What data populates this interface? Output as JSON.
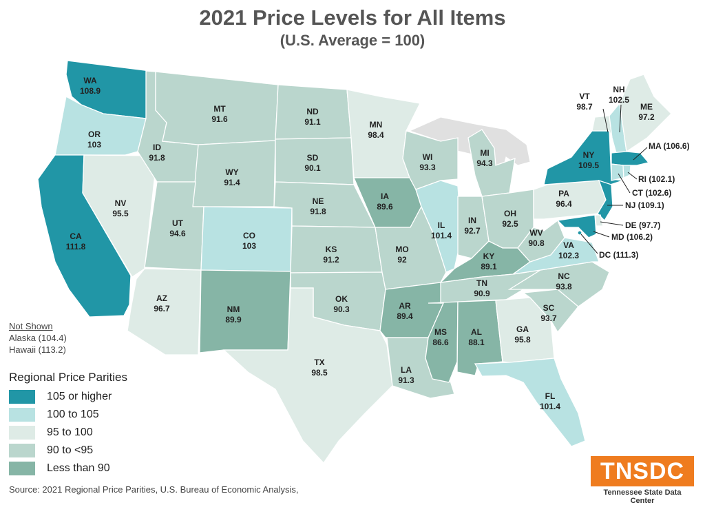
{
  "title": "2021 Price Levels for All Items",
  "subtitle": "(U.S. Average = 100)",
  "colors": {
    "tier1": "#2196a6",
    "tier2": "#b8e2e2",
    "tier3": "#deebe6",
    "tier4": "#bad6cd",
    "tier5": "#86b5a6",
    "other": "#e0e0e0",
    "logo": "#ef7c1f"
  },
  "states": {
    "WA": {
      "abbr": "WA",
      "value": "108.9"
    },
    "OR": {
      "abbr": "OR",
      "value": "103"
    },
    "CA": {
      "abbr": "CA",
      "value": "111.8"
    },
    "NV": {
      "abbr": "NV",
      "value": "95.5"
    },
    "ID": {
      "abbr": "ID",
      "value": "91.8"
    },
    "MT": {
      "abbr": "MT",
      "value": "91.6"
    },
    "WY": {
      "abbr": "WY",
      "value": "91.4"
    },
    "UT": {
      "abbr": "UT",
      "value": "94.6"
    },
    "AZ": {
      "abbr": "AZ",
      "value": "96.7"
    },
    "CO": {
      "abbr": "CO",
      "value": "103"
    },
    "NM": {
      "abbr": "NM",
      "value": "89.9"
    },
    "ND": {
      "abbr": "ND",
      "value": "91.1"
    },
    "SD": {
      "abbr": "SD",
      "value": "90.1"
    },
    "NE": {
      "abbr": "NE",
      "value": "91.8"
    },
    "KS": {
      "abbr": "KS",
      "value": "91.2"
    },
    "OK": {
      "abbr": "OK",
      "value": "90.3"
    },
    "TX": {
      "abbr": "TX",
      "value": "98.5"
    },
    "MN": {
      "abbr": "MN",
      "value": "98.4"
    },
    "IA": {
      "abbr": "IA",
      "value": "89.6"
    },
    "MO": {
      "abbr": "MO",
      "value": "92"
    },
    "AR": {
      "abbr": "AR",
      "value": "89.4"
    },
    "LA": {
      "abbr": "LA",
      "value": "91.3"
    },
    "WI": {
      "abbr": "WI",
      "value": "93.3"
    },
    "IL": {
      "abbr": "IL",
      "value": "101.4"
    },
    "MI": {
      "abbr": "MI",
      "value": "94.3"
    },
    "IN": {
      "abbr": "IN",
      "value": "92.7"
    },
    "OH": {
      "abbr": "OH",
      "value": "92.5"
    },
    "KY": {
      "abbr": "KY",
      "value": "89.1"
    },
    "TN": {
      "abbr": "TN",
      "value": "90.9"
    },
    "MS": {
      "abbr": "MS",
      "value": "86.6"
    },
    "AL": {
      "abbr": "AL",
      "value": "88.1"
    },
    "GA": {
      "abbr": "GA",
      "value": "95.8"
    },
    "FL": {
      "abbr": "FL",
      "value": "101.4"
    },
    "SC": {
      "abbr": "SC",
      "value": "93.7"
    },
    "NC": {
      "abbr": "NC",
      "value": "93.8"
    },
    "VA": {
      "abbr": "VA",
      "value": "102.3"
    },
    "WV": {
      "abbr": "WV",
      "value": "90.8"
    },
    "PA": {
      "abbr": "PA",
      "value": "96.4"
    },
    "NY": {
      "abbr": "NY",
      "value": "109.5"
    },
    "VT": {
      "abbr": "VT",
      "value": "98.7"
    },
    "NH": {
      "abbr": "NH",
      "value": "102.5"
    },
    "ME": {
      "abbr": "ME",
      "value": "97.2"
    }
  },
  "callouts": {
    "MA": "MA (106.6)",
    "RI": "RI (102.1)",
    "CT": "CT (102.6)",
    "NJ": "NJ (109.1)",
    "DE": "DE (97.7)",
    "MD": "MD (106.2)",
    "DC": "DC (111.3)"
  },
  "not_shown": {
    "header": "Not Shown",
    "alaska": "Alaska (104.4)",
    "hawaii": "Hawaii (113.2)"
  },
  "legend": {
    "title": "Regional Price Parities",
    "items": [
      {
        "label": "105 or higher",
        "color": "#2196a6"
      },
      {
        "label": "100 to 105",
        "color": "#b8e2e2"
      },
      {
        "label": "95 to 100",
        "color": "#deebe6"
      },
      {
        "label": "90 to <95",
        "color": "#bad6cd"
      },
      {
        "label": "Less than 90",
        "color": "#86b5a6"
      }
    ]
  },
  "source": "Source:  2021 Regional Price Parities, U.S. Bureau of Economic Analysis,",
  "logo": {
    "mark": "TNSDC",
    "caption": "Tennessee State Data Center"
  }
}
